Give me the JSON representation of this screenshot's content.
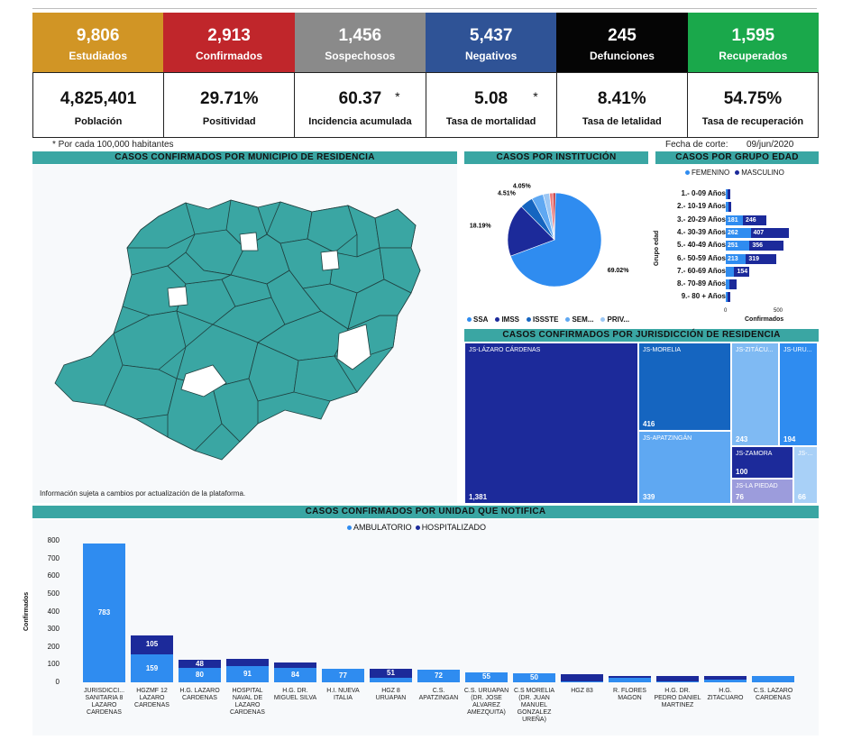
{
  "kpis": [
    {
      "value": "9,806",
      "label": "Estudiados",
      "color": "#d19525"
    },
    {
      "value": "2,913",
      "label": "Confirmados",
      "color": "#c0262b"
    },
    {
      "value": "1,456",
      "label": "Sospechosos",
      "color": "#8a8a8a"
    },
    {
      "value": "5,437",
      "label": "Negativos",
      "color": "#2f5396"
    },
    {
      "value": "245",
      "label": "Defunciones",
      "color": "#050505"
    },
    {
      "value": "1,595",
      "label": "Recuperados",
      "color": "#1aa84b"
    }
  ],
  "stats": [
    {
      "value": "4,825,401",
      "label": "Población",
      "star": ""
    },
    {
      "value": "29.71%",
      "label": "Positividad",
      "star": ""
    },
    {
      "value": "60.37",
      "label": "Incidencia acumulada",
      "star": "*"
    },
    {
      "value": "5.08",
      "label": "Tasa de mortalidad",
      "star": "*"
    },
    {
      "value": "8.41%",
      "label": "Tasa de letalidad",
      "star": ""
    },
    {
      "value": "54.75%",
      "label": "Tasa de recuperación",
      "star": ""
    }
  ],
  "notes": {
    "per_habitants": "* Por cada 100,000 habitantes",
    "cutoff_label": "Fecha de corte:",
    "cutoff_date": "09/jun/2020",
    "map_disclaimer": "Información sujeta a cambios por actualización de la plataforma."
  },
  "section_titles": {
    "municipio": "CASOS CONFIRMADOS POR MUNICIPIO DE RESIDENCIA",
    "institucion": "CASOS POR INSTITUCIÓN",
    "grupo_edad": "CASOS POR GRUPO EDAD",
    "jurisdiccion": "CASOS CONFIRMADOS POR JURISDICCIÓN DE RESIDENCIA",
    "unidad": "CASOS CONFIRMADOS POR UNIDAD QUE NOTIFICA"
  },
  "colors": {
    "section_bar": "#3aa6a3",
    "map_fill": "#3aa6a3",
    "femenino": "#2f8cf0",
    "masculino": "#1c2a9a",
    "ambulatorio": "#2f8cf0",
    "hospitalizado": "#1c2a9a"
  },
  "chart_data": [
    {
      "type": "pie",
      "slices": [
        {
          "label": "SSA",
          "value": 69.02,
          "color": "#2f8cf0",
          "label_text": "69.02%"
        },
        {
          "label": "IMSS",
          "value": 18.19,
          "color": "#1c2a9a",
          "label_text": "18.19%"
        },
        {
          "label": "ISSSTE",
          "value": 4.51,
          "color": "#1565c0",
          "label_text": "4.51%"
        },
        {
          "label": "SEM...",
          "value": 4.05,
          "color": "#5fa8f2",
          "label_text": "4.05%"
        },
        {
          "label": "PRIV...",
          "value": 2.2,
          "color": "#9cc7f4",
          "label_text": ""
        },
        {
          "label": "",
          "value": 1.2,
          "color": "#f08080",
          "label_text": ""
        },
        {
          "label": "",
          "value": 0.83,
          "color": "#c0262b",
          "label_text": ""
        }
      ],
      "legend": [
        "SSA",
        "IMSS",
        "ISSSTE",
        "SEM...",
        "PRIV..."
      ]
    },
    {
      "type": "bar",
      "orientation": "horizontal",
      "legend": [
        "FEMENINO",
        "MASCULINO"
      ],
      "categories": [
        "1.- 0-09 Años",
        "2.- 10-19 Años",
        "3.- 20-29 Años",
        "4.- 30-39 Años",
        "5.- 40-49 Años",
        "6.- 50-59 Años",
        "7.- 60-69 Años",
        "8.- 70-89 Años",
        "9.- 80 + Años"
      ],
      "series": [
        {
          "name": "FEMENINO",
          "values": [
            12,
            25,
            181,
            262,
            251,
            213,
            90,
            40,
            12
          ],
          "labels": [
            "",
            "",
            "181",
            "262",
            "251",
            "213",
            "",
            "",
            ""
          ]
        },
        {
          "name": "MASCULINO",
          "values": [
            18,
            30,
            246,
            407,
            356,
            319,
            154,
            70,
            18
          ],
          "labels": [
            "",
            "",
            "246",
            "407",
            "356",
            "319",
            "154",
            "",
            ""
          ]
        }
      ],
      "xlabel": "Confirmados",
      "ylabel": "Grupo edad",
      "xticks": [
        "0",
        "500"
      ]
    },
    {
      "type": "treemap",
      "items": [
        {
          "label": "JS-LÁZARO CÁRDENAS",
          "value": "1,381",
          "color": "#1c2a9a"
        },
        {
          "label": "JS-MORELIA",
          "value": "416",
          "color": "#1565c0"
        },
        {
          "label": "JS-APATZINGÁN",
          "value": "339",
          "color": "#5fa8f2"
        },
        {
          "label": "JS-ZITÁCU...",
          "value": "243",
          "color": "#7fbaf3"
        },
        {
          "label": "JS-URU...",
          "value": "194",
          "color": "#2f8cf0"
        },
        {
          "label": "JS-ZAMORA",
          "value": "100",
          "color": "#1c2a9a"
        },
        {
          "label": "JS-LA PIEDAD",
          "value": "76",
          "color": "#9c9cdc"
        },
        {
          "label": "JS-...",
          "value": "66",
          "color": "#a8d0f7"
        }
      ]
    },
    {
      "type": "bar",
      "stacked": true,
      "legend": [
        "AMBULATORIO",
        "HOSPITALIZADO"
      ],
      "ylabel": "Confirmados",
      "ylim": [
        0,
        800
      ],
      "yticks": [
        "0",
        "100",
        "200",
        "300",
        "400",
        "500",
        "600",
        "700",
        "800"
      ],
      "categories": [
        "JURISDICCI... SANITARIA 8 LAZARO CARDENAS",
        "HGZMF 12 LAZARO CARDENAS",
        "H.G. LAZARO CARDENAS",
        "HOSPITAL NAVAL DE LAZARO CARDENAS",
        "H.G. DR. MIGUEL SILVA",
        "H.I. NUEVA ITALIA",
        "HGZ 8 URUAPAN",
        "C.S. APATZINGAN",
        "C.S. URUAPAN (DR. JOSE ALVAREZ AMEZQUITA)",
        "C.S MORELIA (DR. JUAN MANUEL GONZALEZ UREÑA)",
        "HGZ 83",
        "R. FLORES MAGON",
        "H.G. DR. PEDRO DANIEL MARTINEZ",
        "H.G. ZITACUARO",
        "C.S. LAZARO CARDENAS"
      ],
      "series": [
        {
          "name": "AMBULATORIO",
          "values": [
            783,
            159,
            80,
            91,
            84,
            77,
            25,
            72,
            55,
            50,
            5,
            28,
            6,
            15,
            35
          ]
        },
        {
          "name": "HOSPITALIZADO",
          "values": [
            0,
            105,
            48,
            40,
            28,
            0,
            51,
            0,
            0,
            0,
            40,
            8,
            30,
            20,
            0
          ]
        }
      ],
      "value_labels": {
        "AMBULATORIO": [
          "783",
          "159",
          "80",
          "91",
          "84",
          "77",
          "",
          "72",
          "55",
          "50",
          "",
          "",
          "",
          "",
          ""
        ],
        "HOSPITALIZADO": [
          "",
          "105",
          "48",
          "",
          "",
          "",
          "51",
          "",
          "",
          "",
          "",
          "",
          "",
          "",
          ""
        ]
      }
    }
  ]
}
